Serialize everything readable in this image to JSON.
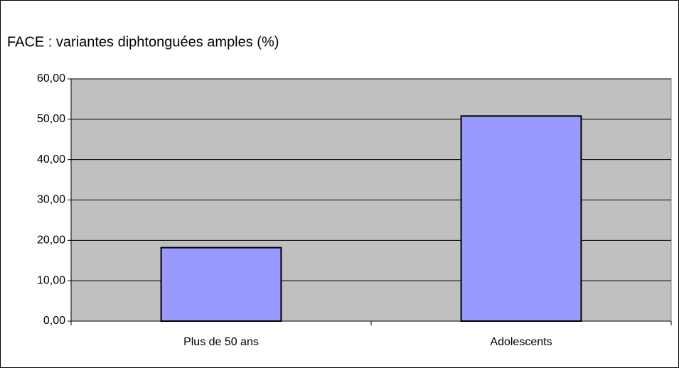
{
  "chart_data": {
    "type": "bar",
    "title": "FACE : variantes diphtonguées amples (%)",
    "categories": [
      "Plus de 50 ans",
      "Adolescents"
    ],
    "values": [
      18.2,
      50.8
    ],
    "color": "#9999ff",
    "ylim": [
      0,
      60
    ],
    "yticks": [
      {
        "value": 0,
        "label": "0,00"
      },
      {
        "value": 10,
        "label": "10,00"
      },
      {
        "value": 20,
        "label": "20,00"
      },
      {
        "value": 30,
        "label": "30,00"
      },
      {
        "value": 40,
        "label": "40,00"
      },
      {
        "value": 50,
        "label": "50,00"
      },
      {
        "value": 60,
        "label": "60,00"
      }
    ],
    "grid": true
  }
}
